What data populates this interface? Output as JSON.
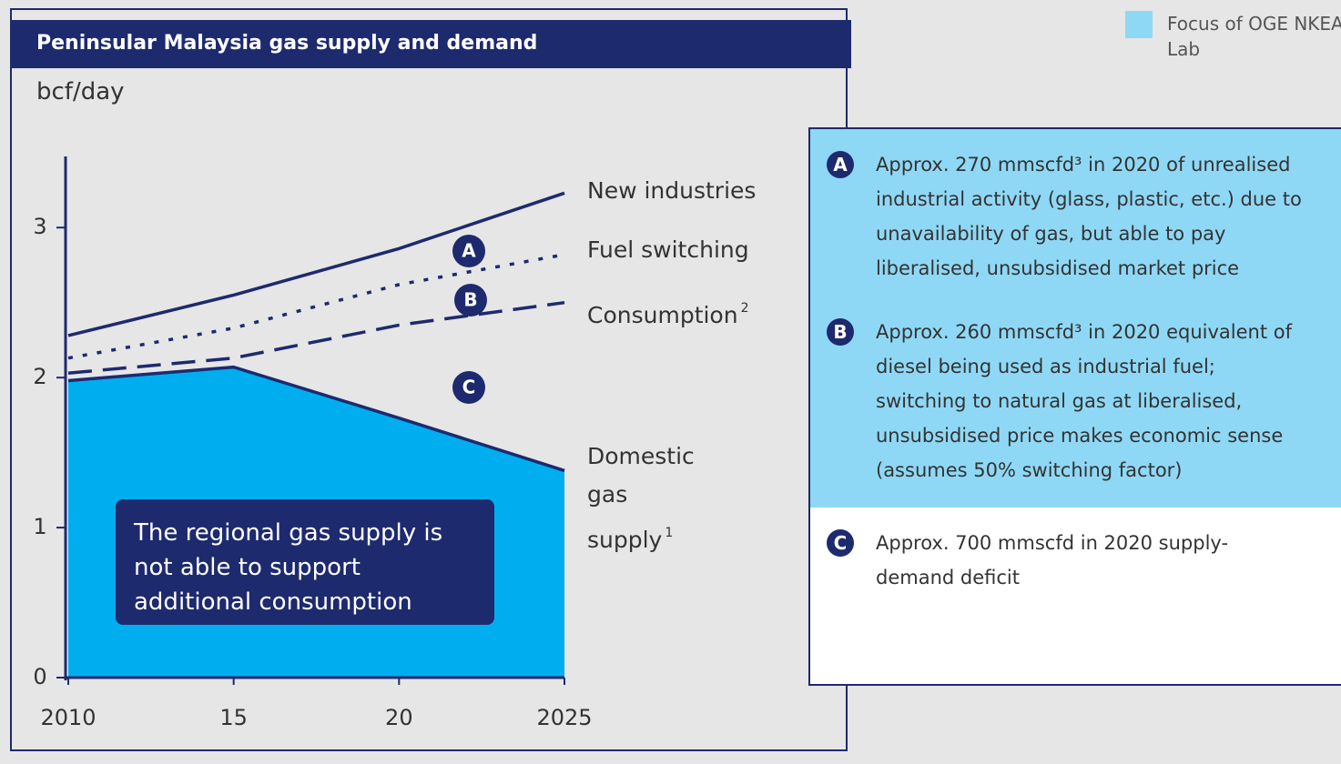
{
  "chart_data": {
    "type": "line",
    "title": "Peninsular Malaysia gas supply and demand",
    "y_label": "bcf/day",
    "x": [
      2010,
      2015,
      2020,
      2025
    ],
    "xlim": [
      2010,
      2025
    ],
    "xticks": [
      2010,
      {
        "value": 2015,
        "label": "15"
      },
      {
        "value": 2020,
        "label": "20"
      },
      2025
    ],
    "ylim": [
      0,
      3.45
    ],
    "yticks": [
      0,
      1,
      2,
      3
    ],
    "series": [
      {
        "name": "New industries",
        "color": "#1e2a6e",
        "style": "solid",
        "values": [
          2.28,
          2.55,
          2.86,
          3.23
        ]
      },
      {
        "name": "Fuel switching",
        "color": "#1e2a6e",
        "style": "dotted",
        "values": [
          2.13,
          2.33,
          2.62,
          2.82
        ]
      },
      {
        "name": "Consumption",
        "footnote": "2",
        "color": "#1e2a6e",
        "style": "dashed",
        "values": [
          2.03,
          2.13,
          2.35,
          2.5
        ]
      },
      {
        "name": "Domestic gas supply",
        "footnote": "1",
        "color": "#1e2a6e",
        "fill": "#00aeef",
        "style": "area",
        "values": [
          1.98,
          2.07,
          1.73,
          1.38
        ]
      }
    ],
    "markers": [
      {
        "label": "A"
      },
      {
        "label": "B"
      },
      {
        "label": "C"
      }
    ],
    "callout": "The regional gas supply is not able to support additional consumption"
  },
  "legend": {
    "label": "Focus of OGE NKEA Lab",
    "color": "#8fd8f5"
  },
  "notes": [
    {
      "label": "A",
      "text": "Approx. 270 mmscfd³ in 2020 of unrealised industrial activity (glass, plastic, etc.) due to unavailability of gas, but able to pay liberalised, unsubsidised market price",
      "color": "#8fd8f5"
    },
    {
      "label": "B",
      "text": "Approx. 260 mmscfd³ in 2020 equivalent of diesel being used as industrial fuel; switching to natural gas at liberalised, unsubsidised price makes economic sense (assumes 50% switching factor)",
      "color": "#8fd8f5"
    },
    {
      "label": "C",
      "text": "Approx. 700 mmscfd in 2020 supply-demand deficit",
      "color": "#ffffff"
    }
  ]
}
